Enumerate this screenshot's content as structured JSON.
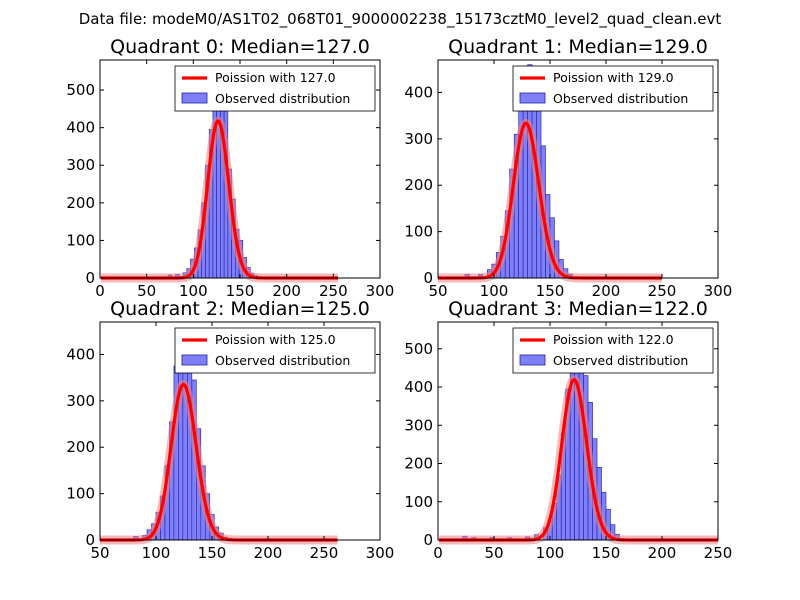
{
  "figure_title": "Data file: modeM0/AS1T02_068T01_9000002238_15173cztM0_level2_quad_clean.evt",
  "colors": {
    "bar_fill": "#7f7ff7",
    "bar_edge": "#1f1fb0",
    "poisson_line": "#ff0000",
    "shade": "#f08080"
  },
  "chart_data": [
    {
      "type": "bar",
      "title": "Quadrant 0: Median=127.0",
      "legend": [
        "Poission with 127.0",
        "Observed distribution"
      ],
      "legend_position": "top-right",
      "xlim": [
        0,
        300
      ],
      "ylim": [
        0,
        580
      ],
      "xticks": [
        0,
        50,
        100,
        150,
        200,
        250,
        300
      ],
      "yticks": [
        0,
        100,
        200,
        300,
        400,
        500
      ],
      "poisson_mean": 127,
      "poisson_total": 11800,
      "x_end": 255,
      "bin_width": 4,
      "bins": [
        [
          73,
          8
        ],
        [
          81,
          10
        ],
        [
          89,
          14
        ],
        [
          93,
          25
        ],
        [
          97,
          50
        ],
        [
          101,
          80
        ],
        [
          105,
          128
        ],
        [
          109,
          200
        ],
        [
          113,
          300
        ],
        [
          117,
          395
        ],
        [
          121,
          475
        ],
        [
          125,
          560
        ],
        [
          129,
          520
        ],
        [
          133,
          480
        ],
        [
          137,
          290
        ],
        [
          141,
          210
        ],
        [
          145,
          130
        ],
        [
          149,
          100
        ],
        [
          153,
          55
        ],
        [
          157,
          28
        ],
        [
          161,
          12
        ],
        [
          165,
          6
        ]
      ]
    },
    {
      "type": "bar",
      "title": "Quadrant 1: Median=129.0",
      "legend": [
        "Poission with 129.0",
        "Observed distribution"
      ],
      "legend_position": "top-right",
      "xlim": [
        50,
        300
      ],
      "ylim": [
        0,
        470
      ],
      "xticks": [
        50,
        100,
        150,
        200,
        250,
        300
      ],
      "yticks": [
        0,
        100,
        200,
        300,
        400
      ],
      "poisson_mean": 129,
      "poisson_total": 9500,
      "x_end": 250,
      "bin_width": 4,
      "bins": [
        [
          74,
          8
        ],
        [
          86,
          8
        ],
        [
          94,
          18
        ],
        [
          98,
          30
        ],
        [
          102,
          55
        ],
        [
          106,
          90
        ],
        [
          110,
          145
        ],
        [
          114,
          235
        ],
        [
          118,
          310
        ],
        [
          122,
          365
        ],
        [
          126,
          435
        ],
        [
          130,
          460
        ],
        [
          134,
          415
        ],
        [
          138,
          365
        ],
        [
          142,
          285
        ],
        [
          146,
          180
        ],
        [
          150,
          130
        ],
        [
          154,
          80
        ],
        [
          158,
          40
        ],
        [
          162,
          20
        ],
        [
          166,
          8
        ]
      ]
    },
    {
      "type": "bar",
      "title": "Quadrant 2: Median=125.0",
      "legend": [
        "Poission with 125.0",
        "Observed distribution"
      ],
      "legend_position": "top-right",
      "xlim": [
        50,
        300
      ],
      "ylim": [
        0,
        470
      ],
      "xticks": [
        50,
        100,
        150,
        200,
        250,
        300
      ],
      "yticks": [
        0,
        100,
        200,
        300,
        400
      ],
      "poisson_mean": 125,
      "poisson_total": 9400,
      "x_end": 262,
      "bin_width": 4,
      "bins": [
        [
          80,
          8
        ],
        [
          88,
          10
        ],
        [
          92,
          22
        ],
        [
          96,
          35
        ],
        [
          100,
          60
        ],
        [
          104,
          95
        ],
        [
          108,
          160
        ],
        [
          112,
          255
        ],
        [
          116,
          375
        ],
        [
          120,
          430
        ],
        [
          124,
          440
        ],
        [
          128,
          395
        ],
        [
          132,
          345
        ],
        [
          136,
          240
        ],
        [
          140,
          160
        ],
        [
          144,
          100
        ],
        [
          148,
          55
        ],
        [
          152,
          28
        ],
        [
          156,
          15
        ],
        [
          160,
          6
        ]
      ]
    },
    {
      "type": "bar",
      "title": "Quadrant 3: Median=122.0",
      "legend": [
        "Poission with 122.0",
        "Observed distribution"
      ],
      "legend_position": "top-right",
      "xlim": [
        0,
        250
      ],
      "ylim": [
        0,
        570
      ],
      "xticks": [
        0,
        50,
        100,
        150,
        200,
        250
      ],
      "yticks": [
        0,
        100,
        200,
        300,
        400,
        500
      ],
      "poisson_mean": 122,
      "poisson_total": 11600,
      "x_end": 250,
      "bin_width": 4,
      "bins": [
        [
          22,
          10
        ],
        [
          30,
          6
        ],
        [
          46,
          6
        ],
        [
          62,
          6
        ],
        [
          78,
          8
        ],
        [
          86,
          14
        ],
        [
          94,
          32
        ],
        [
          98,
          50
        ],
        [
          102,
          95
        ],
        [
          106,
          170
        ],
        [
          110,
          280
        ],
        [
          114,
          395
        ],
        [
          118,
          480
        ],
        [
          122,
          515
        ],
        [
          126,
          490
        ],
        [
          130,
          430
        ],
        [
          134,
          360
        ],
        [
          138,
          265
        ],
        [
          142,
          190
        ],
        [
          146,
          125
        ],
        [
          150,
          80
        ],
        [
          154,
          40
        ],
        [
          158,
          15
        ]
      ]
    }
  ]
}
